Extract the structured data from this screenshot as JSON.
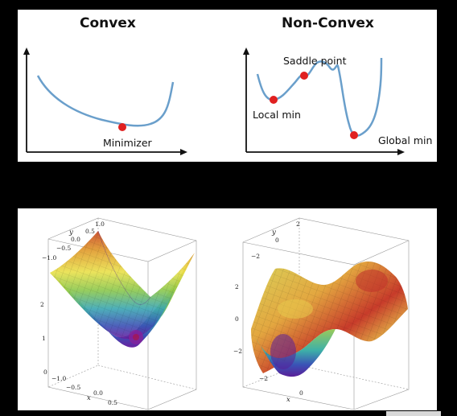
{
  "top": {
    "convex": {
      "title": "Convex",
      "point_label": "Minimizer"
    },
    "nonconvex": {
      "title": "Non-Convex",
      "labels": {
        "saddle": "Saddle point",
        "local": "Local min",
        "global": "Global min"
      }
    },
    "colors": {
      "curve": "#6a9fcb",
      "point": "#e02020",
      "axis": "#111111"
    }
  },
  "bottom": {
    "left_plot": {
      "y_axis_label": "y",
      "x_axis_label": "x",
      "y_ticks": [
        "1.0",
        "0.5",
        "0.0",
        "−0.5",
        "−1.0"
      ],
      "z_ticks": [
        "2",
        "1",
        "0"
      ],
      "x_ticks": [
        "−1.0",
        "−0.5",
        "0.0",
        "0.5"
      ]
    },
    "right_plot": {
      "y_axis_label": "y",
      "x_axis_label": "x",
      "y_ticks": [
        "2",
        "0",
        "−2"
      ],
      "z_ticks": [
        "2",
        "0",
        "−2"
      ],
      "x_ticks": [
        "−2",
        "0"
      ]
    }
  }
}
